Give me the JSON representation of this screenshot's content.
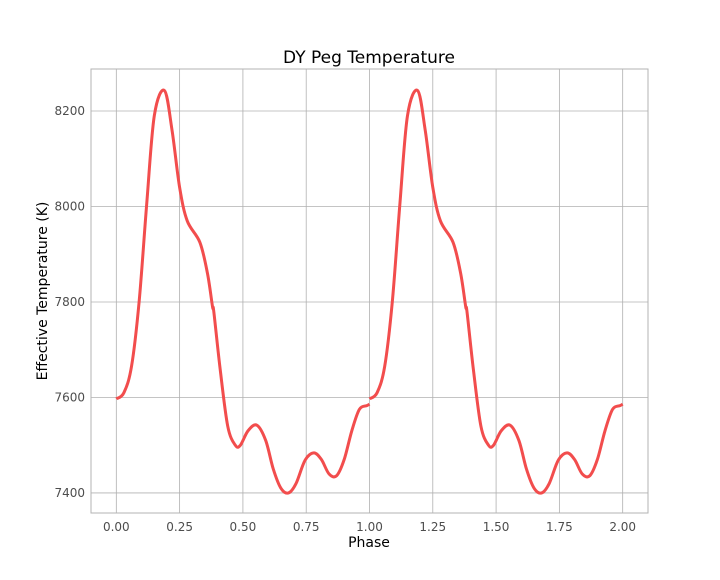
{
  "chart_data": {
    "type": "line",
    "title": "DY Peg Temperature",
    "xlabel": "Phase",
    "ylabel": "Effective Temperature (K)",
    "xlim": [
      -0.1,
      2.1
    ],
    "ylim": [
      7358,
      8288
    ],
    "xticks": [
      0.0,
      0.25,
      0.5,
      0.75,
      1.0,
      1.25,
      1.5,
      1.75,
      2.0
    ],
    "xtick_labels": [
      "0.00",
      "0.25",
      "0.50",
      "0.75",
      "1.00",
      "1.25",
      "1.50",
      "1.75",
      "2.00"
    ],
    "yticks": [
      7400,
      7600,
      7800,
      8000,
      8200
    ],
    "ytick_labels": [
      "7400",
      "7600",
      "7800",
      "8000",
      "8200"
    ],
    "grid": true,
    "legend": "none",
    "series": [
      {
        "color": "#f24d4d",
        "x": [
          0.0,
          0.03,
          0.06,
          0.09,
          0.12,
          0.15,
          0.19,
          0.22,
          0.25,
          0.28,
          0.33,
          0.36,
          0.38,
          0.385,
          0.41,
          0.44,
          0.47,
          0.49,
          0.52,
          0.555,
          0.59,
          0.62,
          0.65,
          0.68,
          0.71,
          0.745,
          0.78,
          0.81,
          0.84,
          0.87,
          0.9,
          0.93,
          0.96,
          0.99,
          1.0
        ],
        "y": [
          7597,
          7610,
          7665,
          7800,
          8005,
          8190,
          8243,
          8160,
          8040,
          7970,
          7925,
          7860,
          7790,
          7780,
          7660,
          7540,
          7500,
          7500,
          7530,
          7542,
          7510,
          7450,
          7410,
          7400,
          7420,
          7468,
          7484,
          7470,
          7440,
          7436,
          7470,
          7530,
          7575,
          7583,
          7586
        ]
      },
      {
        "color": "#f24d4d",
        "x": [
          1.0,
          1.03,
          1.06,
          1.09,
          1.12,
          1.15,
          1.19,
          1.22,
          1.25,
          1.28,
          1.33,
          1.36,
          1.38,
          1.385,
          1.41,
          1.44,
          1.47,
          1.49,
          1.52,
          1.555,
          1.59,
          1.62,
          1.65,
          1.68,
          1.71,
          1.745,
          1.78,
          1.81,
          1.84,
          1.87,
          1.9,
          1.93,
          1.96,
          1.99,
          2.0
        ],
        "y": [
          7597,
          7610,
          7665,
          7800,
          8005,
          8190,
          8243,
          8160,
          8040,
          7970,
          7925,
          7860,
          7790,
          7780,
          7660,
          7540,
          7500,
          7500,
          7530,
          7542,
          7510,
          7450,
          7410,
          7400,
          7420,
          7468,
          7484,
          7470,
          7440,
          7436,
          7470,
          7530,
          7575,
          7583,
          7586
        ]
      }
    ]
  }
}
